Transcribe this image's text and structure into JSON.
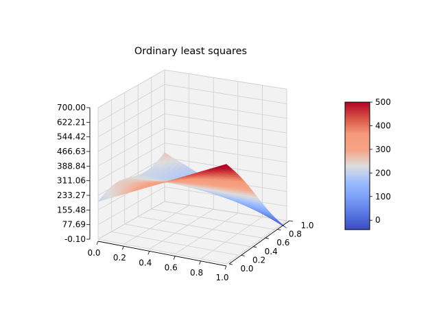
{
  "chart_data": {
    "type": "surface3d",
    "title": "Ordinary least squares",
    "colormap": "coolwarm",
    "x_axis": {
      "range": [
        0.0,
        1.0
      ],
      "ticks": [
        "0.0",
        "0.2",
        "0.4",
        "0.6",
        "0.8",
        "1.0"
      ]
    },
    "y_axis": {
      "range": [
        0.0,
        1.0
      ],
      "ticks": [
        "0.0",
        "0.2",
        "0.4",
        "0.6",
        "0.8",
        "1.0"
      ]
    },
    "z_axis": {
      "range": [
        -0.1,
        700.0
      ],
      "ticks": [
        "-0.10",
        "77.69",
        "155.48",
        "233.27",
        "311.06",
        "388.84",
        "466.63",
        "544.42",
        "622.21",
        "700.00"
      ]
    },
    "colorbar": {
      "range": [
        -40,
        500
      ],
      "ticks": [
        "0",
        "100",
        "200",
        "300",
        "400",
        "500"
      ],
      "tick_values": [
        0,
        100,
        200,
        300,
        400,
        500
      ]
    },
    "surface_corners": {
      "x0_y0": 200,
      "x1_y0": 530,
      "x0_y1": 260,
      "x1_y1": -40
    },
    "grid": true
  },
  "colors": {
    "cool": "#3b4cc0",
    "mid": "#dddddd",
    "warm": "#b40426",
    "pane": "#f2f2f2",
    "grid": "#cfcfcf"
  }
}
